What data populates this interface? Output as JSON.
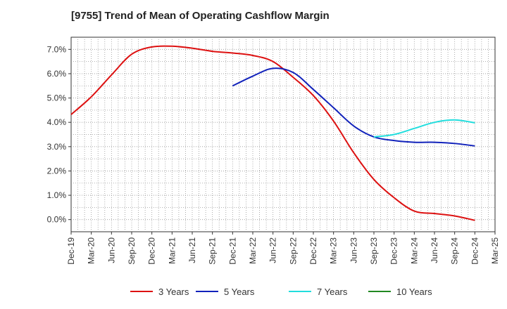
{
  "chart_data": {
    "type": "line",
    "title": "[9755]  Trend of Mean of Operating Cashflow Margin",
    "xlabel": "",
    "ylabel": "",
    "ylim": [
      -0.5,
      7.5
    ],
    "y_ticks": [
      "0.0%",
      "1.0%",
      "2.0%",
      "3.0%",
      "4.0%",
      "5.0%",
      "6.0%",
      "7.0%"
    ],
    "y_tick_values": [
      0,
      1,
      2,
      3,
      4,
      5,
      6,
      7
    ],
    "categories": [
      "Dec-19",
      "Mar-20",
      "Jun-20",
      "Sep-20",
      "Dec-20",
      "Mar-21",
      "Jun-21",
      "Sep-21",
      "Dec-21",
      "Mar-22",
      "Jun-22",
      "Sep-22",
      "Dec-22",
      "Mar-23",
      "Jun-23",
      "Sep-23",
      "Dec-23",
      "Mar-24",
      "Jun-24",
      "Sep-24",
      "Dec-24",
      "Mar-25"
    ],
    "grid": true,
    "legend_position": "bottom",
    "series": [
      {
        "name": "3 Years",
        "color": "#dd1111",
        "values": [
          4.32,
          5.05,
          5.95,
          6.8,
          7.1,
          7.13,
          7.05,
          6.92,
          6.85,
          6.75,
          6.5,
          5.85,
          5.1,
          4.05,
          2.75,
          1.65,
          0.9,
          0.35,
          0.25,
          0.15,
          -0.03,
          null
        ]
      },
      {
        "name": "5 Years",
        "color": "#1122bb",
        "values": [
          null,
          null,
          null,
          null,
          null,
          null,
          null,
          null,
          5.5,
          5.9,
          6.22,
          6.05,
          5.35,
          4.6,
          3.85,
          3.4,
          3.25,
          3.18,
          3.18,
          3.13,
          3.03,
          null
        ]
      },
      {
        "name": "7 Years",
        "color": "#22dddd",
        "values": [
          null,
          null,
          null,
          null,
          null,
          null,
          null,
          null,
          null,
          null,
          null,
          null,
          null,
          null,
          null,
          3.4,
          3.5,
          3.75,
          4.0,
          4.1,
          3.98,
          null
        ]
      },
      {
        "name": "10 Years",
        "color": "#228822",
        "values": [
          null,
          null,
          null,
          null,
          null,
          null,
          null,
          null,
          null,
          null,
          null,
          null,
          null,
          null,
          null,
          null,
          null,
          null,
          null,
          null,
          null,
          null
        ]
      }
    ]
  }
}
